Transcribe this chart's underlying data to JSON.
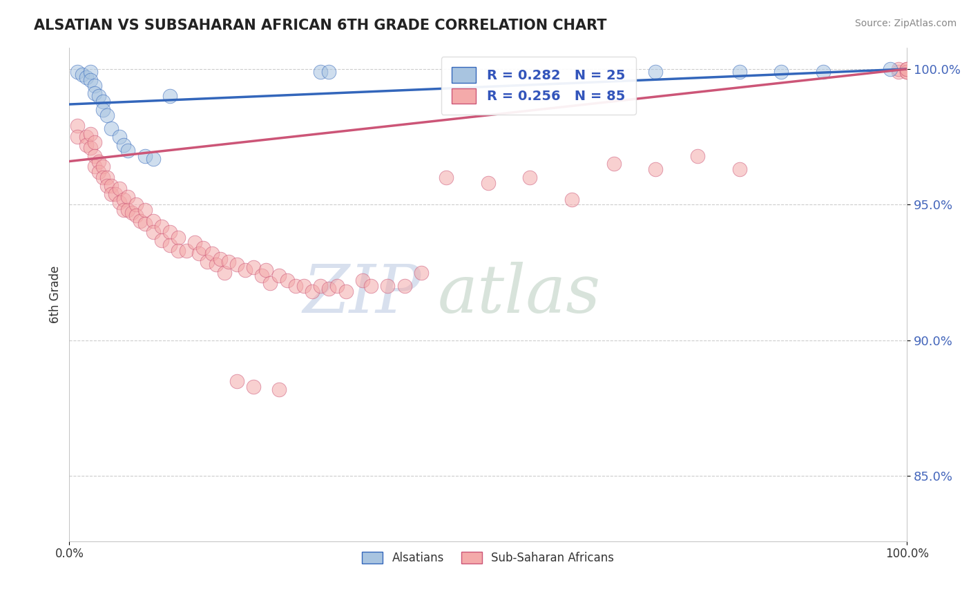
{
  "title": "ALSATIAN VS SUBSAHARAN AFRICAN 6TH GRADE CORRELATION CHART",
  "source": "Source: ZipAtlas.com",
  "ylabel": "6th Grade",
  "ytick_values": [
    0.85,
    0.9,
    0.95,
    1.0
  ],
  "xmin": 0.0,
  "xmax": 1.0,
  "ymin": 0.826,
  "ymax": 1.008,
  "blue_color": "#A8C4E0",
  "pink_color": "#F4AAAA",
  "blue_line_color": "#3366BB",
  "pink_line_color": "#CC5577",
  "grid_color": "#CCCCCC",
  "legend_blue_label": "R = 0.282   N = 25",
  "legend_pink_label": "R = 0.256   N = 85",
  "watermark_zip": "ZIP",
  "watermark_atlas": "atlas",
  "legend_label_alsatians": "Alsatians",
  "legend_label_subsaharan": "Sub-Saharan Africans",
  "blue_scatter_x": [
    0.01,
    0.015,
    0.02,
    0.025,
    0.025,
    0.03,
    0.03,
    0.035,
    0.04,
    0.04,
    0.045,
    0.05,
    0.06,
    0.065,
    0.07,
    0.09,
    0.1,
    0.12,
    0.3,
    0.31,
    0.7,
    0.8,
    0.85,
    0.9,
    0.98
  ],
  "blue_scatter_y": [
    0.999,
    0.998,
    0.997,
    0.999,
    0.996,
    0.994,
    0.991,
    0.99,
    0.988,
    0.985,
    0.983,
    0.978,
    0.975,
    0.972,
    0.97,
    0.968,
    0.967,
    0.99,
    0.999,
    0.999,
    0.999,
    0.999,
    0.999,
    0.999,
    1.0
  ],
  "pink_scatter_x": [
    0.01,
    0.01,
    0.02,
    0.02,
    0.025,
    0.025,
    0.03,
    0.03,
    0.03,
    0.035,
    0.035,
    0.04,
    0.04,
    0.045,
    0.045,
    0.05,
    0.05,
    0.055,
    0.06,
    0.06,
    0.065,
    0.065,
    0.07,
    0.07,
    0.075,
    0.08,
    0.08,
    0.085,
    0.09,
    0.09,
    0.1,
    0.1,
    0.11,
    0.11,
    0.12,
    0.12,
    0.13,
    0.13,
    0.14,
    0.15,
    0.155,
    0.16,
    0.165,
    0.17,
    0.175,
    0.18,
    0.185,
    0.19,
    0.2,
    0.21,
    0.22,
    0.23,
    0.235,
    0.24,
    0.25,
    0.26,
    0.27,
    0.28,
    0.29,
    0.3,
    0.31,
    0.32,
    0.33,
    0.35,
    0.36,
    0.38,
    0.4,
    0.42,
    0.45,
    0.5,
    0.55,
    0.6,
    0.65,
    0.7,
    0.75,
    0.8,
    0.2,
    0.22,
    0.25,
    0.99,
    0.99,
    1.0,
    1.0,
    1.0,
    1.0
  ],
  "pink_scatter_y": [
    0.979,
    0.975,
    0.975,
    0.972,
    0.976,
    0.971,
    0.973,
    0.968,
    0.964,
    0.966,
    0.962,
    0.964,
    0.96,
    0.96,
    0.957,
    0.957,
    0.954,
    0.954,
    0.956,
    0.951,
    0.952,
    0.948,
    0.953,
    0.948,
    0.947,
    0.95,
    0.946,
    0.944,
    0.948,
    0.943,
    0.944,
    0.94,
    0.942,
    0.937,
    0.94,
    0.935,
    0.938,
    0.933,
    0.933,
    0.936,
    0.932,
    0.934,
    0.929,
    0.932,
    0.928,
    0.93,
    0.925,
    0.929,
    0.928,
    0.926,
    0.927,
    0.924,
    0.926,
    0.921,
    0.924,
    0.922,
    0.92,
    0.92,
    0.918,
    0.92,
    0.919,
    0.92,
    0.918,
    0.922,
    0.92,
    0.92,
    0.92,
    0.925,
    0.96,
    0.958,
    0.96,
    0.952,
    0.965,
    0.963,
    0.968,
    0.963,
    0.885,
    0.883,
    0.882,
    0.999,
    1.0,
    0.999,
    1.0,
    0.999,
    1.0
  ],
  "blue_trend_x0": 0.0,
  "blue_trend_y0": 0.987,
  "blue_trend_x1": 1.0,
  "blue_trend_y1": 1.0,
  "pink_trend_x0": 0.0,
  "pink_trend_y0": 0.966,
  "pink_trend_x1": 1.0,
  "pink_trend_y1": 1.0
}
